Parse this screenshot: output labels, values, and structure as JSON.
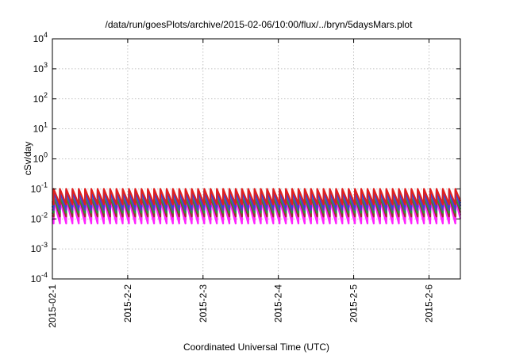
{
  "chart_data": {
    "type": "line",
    "title": "/data/run/goesPlots/archive/2015-02-06/10:00/flux/../bryn/5daysMars.plot",
    "xlabel": "Coordinated Universal Time (UTC)",
    "ylabel": "cSv/day",
    "y_scale": "log",
    "ylim": [
      0.0001,
      10000
    ],
    "y_ticks": [
      {
        "value": 0.0001,
        "base": "10",
        "exp": "-4"
      },
      {
        "value": 0.001,
        "base": "10",
        "exp": "-3"
      },
      {
        "value": 0.01,
        "base": "10",
        "exp": "-2"
      },
      {
        "value": 0.1,
        "base": "10",
        "exp": "-1"
      },
      {
        "value": 1,
        "base": "10",
        "exp": "0"
      },
      {
        "value": 10,
        "base": "10",
        "exp": "1"
      },
      {
        "value": 100,
        "base": "10",
        "exp": "2"
      },
      {
        "value": 1000,
        "base": "10",
        "exp": "3"
      },
      {
        "value": 10000,
        "base": "10",
        "exp": "4"
      }
    ],
    "xlim": [
      "2015-02-01T00:00",
      "2015-02-06T10:00"
    ],
    "x_ticks": [
      {
        "value": "2015-02-01",
        "label": "2015-02-1"
      },
      {
        "value": "2015-02-02",
        "label": "2015-2-2"
      },
      {
        "value": "2015-02-03",
        "label": "2015-2-3"
      },
      {
        "value": "2015-02-04",
        "label": "2015-2-4"
      },
      {
        "value": "2015-02-05",
        "label": "2015-2-5"
      },
      {
        "value": "2015-02-06",
        "label": "2015-2-6"
      }
    ],
    "grid": true,
    "pattern": {
      "cycles_per_day": 12,
      "phase_hours": 0.4
    },
    "series": [
      {
        "color": "#e0207a",
        "peak": 0.065,
        "trough": 0.009
      },
      {
        "color": "#ff22ff",
        "peak": 0.045,
        "trough": 0.007
      },
      {
        "color": "#9a3030",
        "peak": 0.055,
        "trough": 0.012
      },
      {
        "color": "#20a040",
        "peak": 0.06,
        "trough": 0.016
      },
      {
        "color": "#20c8c8",
        "peak": 0.07,
        "trough": 0.022
      },
      {
        "color": "#6a2cc0",
        "peak": 0.08,
        "trough": 0.02
      },
      {
        "color": "#2050e8",
        "peak": 0.09,
        "trough": 0.026
      },
      {
        "color": "#e02020",
        "peak": 0.1,
        "trough": 0.03
      }
    ]
  }
}
